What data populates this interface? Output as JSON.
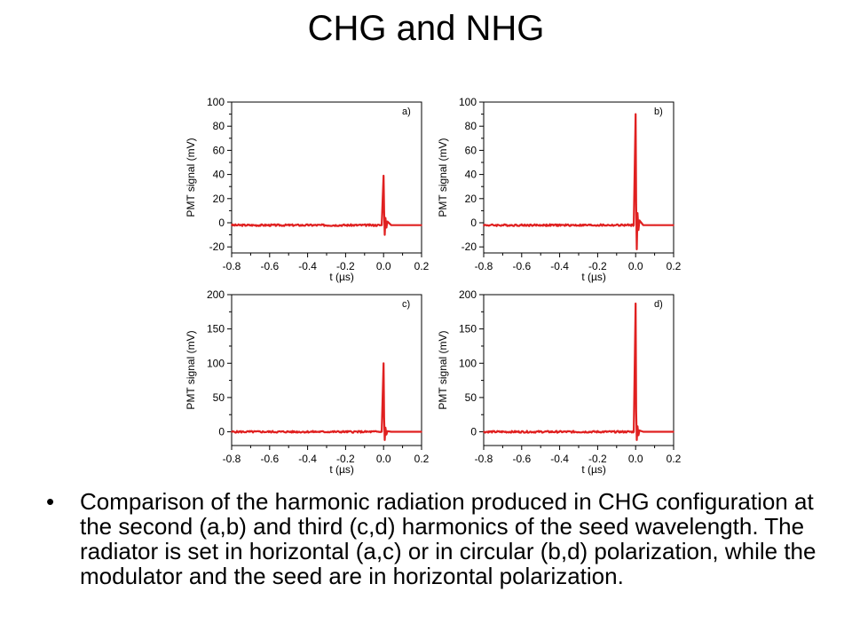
{
  "slide": {
    "title": "CHG and NHG",
    "bullet_symbol": "•",
    "bullet_text": "Comparison of the harmonic radiation produced in CHG configuration at the second (a,b) and third (c,d) harmonics of the seed wavelength. The radiator is set in horizontal (a,c) or in circular (b,d) polarization, while the modulator and the seed are in horizontal polarization."
  },
  "colors": {
    "trace": "#e02020",
    "axis": "#000000"
  },
  "chart_data": [
    {
      "type": "line",
      "panel_label": "a)",
      "xlabel": "t (µs)",
      "ylabel": "PMT signal (mV)",
      "xlim": [
        -0.8,
        0.2
      ],
      "ylim": [
        -25,
        100
      ],
      "xticks": [
        -0.8,
        -0.6,
        -0.4,
        -0.2,
        0.0,
        0.2
      ],
      "xtick_labels": [
        "-0.8",
        "-0.6",
        "-0.4",
        "-0.2",
        "0.0",
        "0.2"
      ],
      "yticks": [
        -20,
        0,
        20,
        40,
        60,
        80,
        100
      ],
      "ytick_labels": [
        "-20",
        "0",
        "20",
        "40",
        "60",
        "80",
        "100"
      ],
      "baseline": -2,
      "x": [
        -0.8,
        -0.6,
        -0.4,
        -0.2,
        -0.05,
        -0.01,
        0.0,
        0.003,
        0.006,
        0.01,
        0.015,
        0.02,
        0.04,
        0.1,
        0.2
      ],
      "y": [
        -2,
        -2,
        -2,
        -2,
        -2,
        -2,
        39,
        10,
        -10,
        4,
        -4,
        1,
        -2,
        -2,
        -2
      ]
    },
    {
      "type": "line",
      "panel_label": "b)",
      "xlabel": "t (µs)",
      "ylabel": "PMT signal (mV)",
      "xlim": [
        -0.8,
        0.2
      ],
      "ylim": [
        -25,
        100
      ],
      "xticks": [
        -0.8,
        -0.6,
        -0.4,
        -0.2,
        0.0,
        0.2
      ],
      "xtick_labels": [
        "-0.8",
        "-0.6",
        "-0.4",
        "-0.2",
        "0.0",
        "0.2"
      ],
      "yticks": [
        -20,
        0,
        20,
        40,
        60,
        80,
        100
      ],
      "ytick_labels": [
        "-20",
        "0",
        "20",
        "40",
        "60",
        "80",
        "100"
      ],
      "baseline": -2,
      "x": [
        -0.8,
        -0.6,
        -0.4,
        -0.2,
        -0.05,
        -0.01,
        0.0,
        0.003,
        0.006,
        0.01,
        0.015,
        0.02,
        0.04,
        0.1,
        0.2
      ],
      "y": [
        -2,
        -2,
        -2,
        -2,
        -2,
        -2,
        90,
        15,
        -22,
        8,
        -6,
        2,
        -2,
        -2,
        -2
      ]
    },
    {
      "type": "line",
      "panel_label": "c)",
      "xlabel": "t (µs)",
      "ylabel": "PMT signal (mV)",
      "xlim": [
        -0.8,
        0.2
      ],
      "ylim": [
        -20,
        200
      ],
      "xticks": [
        -0.8,
        -0.6,
        -0.4,
        -0.2,
        0.0,
        0.2
      ],
      "xtick_labels": [
        "-0.8",
        "-0.6",
        "-0.4",
        "-0.2",
        "0.0",
        "0.2"
      ],
      "yticks": [
        0,
        50,
        100,
        150,
        200
      ],
      "ytick_labels": [
        "0",
        "50",
        "100",
        "150",
        "200"
      ],
      "baseline": 0,
      "x": [
        -0.8,
        -0.6,
        -0.4,
        -0.2,
        -0.05,
        -0.01,
        0.0,
        0.003,
        0.006,
        0.01,
        0.015,
        0.02,
        0.04,
        0.1,
        0.2
      ],
      "y": [
        0,
        0,
        0,
        0,
        0,
        0,
        100,
        20,
        -12,
        6,
        -4,
        1,
        0,
        0,
        0
      ]
    },
    {
      "type": "line",
      "panel_label": "d)",
      "xlabel": "t (µs)",
      "ylabel": "PMT signal (mV)",
      "xlim": [
        -0.8,
        0.2
      ],
      "ylim": [
        -20,
        200
      ],
      "xticks": [
        -0.8,
        -0.6,
        -0.4,
        -0.2,
        0.0,
        0.2
      ],
      "xtick_labels": [
        "-0.8",
        "-0.6",
        "-0.4",
        "-0.2",
        "0.0",
        "0.2"
      ],
      "yticks": [
        0,
        50,
        100,
        150,
        200
      ],
      "ytick_labels": [
        "0",
        "50",
        "100",
        "150",
        "200"
      ],
      "baseline": 0,
      "x": [
        -0.8,
        -0.6,
        -0.4,
        -0.2,
        -0.05,
        -0.01,
        0.0,
        0.003,
        0.006,
        0.01,
        0.015,
        0.02,
        0.04,
        0.1,
        0.2
      ],
      "y": [
        0,
        0,
        0,
        0,
        0,
        0,
        187,
        30,
        -12,
        8,
        -5,
        2,
        0,
        0,
        0
      ]
    }
  ]
}
